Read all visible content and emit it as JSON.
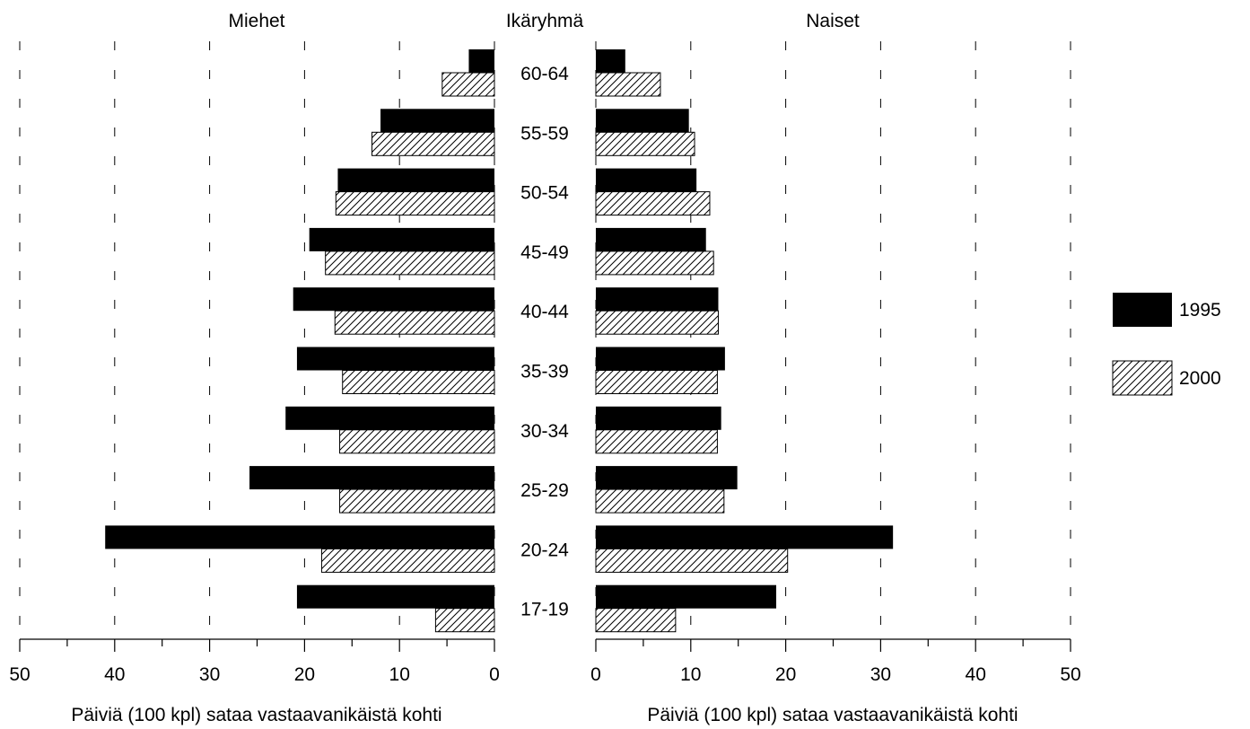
{
  "chart_data": {
    "type": "bar",
    "orientation": "horizontal",
    "layout": "population-pyramid",
    "center_label": "Ikäryhmä",
    "categories": [
      "60-64",
      "55-59",
      "50-54",
      "45-49",
      "40-44",
      "35-39",
      "30-34",
      "25-29",
      "20-24",
      "17-19"
    ],
    "panels": [
      {
        "title": "Miehet",
        "xlabel": "Päiviä (100 kpl) sataa vastaavanikäistä kohti",
        "direction": "reversed",
        "xlim": [
          0,
          50
        ],
        "ticks": [
          50,
          40,
          30,
          20,
          10,
          0
        ],
        "series": [
          {
            "name": "1995",
            "values": [
              2.7,
              12.0,
              16.5,
              19.5,
              21.2,
              20.8,
              22.0,
              25.8,
              41.0,
              20.8
            ]
          },
          {
            "name": "2000",
            "values": [
              5.5,
              12.9,
              16.7,
              17.8,
              16.8,
              16.0,
              16.3,
              16.3,
              18.2,
              6.2
            ]
          }
        ]
      },
      {
        "title": "Naiset",
        "xlabel": "Päiviä (100 kpl) sataa vastaavanikäistä kohti",
        "direction": "normal",
        "xlim": [
          0,
          50
        ],
        "ticks": [
          0,
          10,
          20,
          30,
          40,
          50
        ],
        "series": [
          {
            "name": "1995",
            "values": [
              3.1,
              9.8,
              10.6,
              11.6,
              12.9,
              13.6,
              13.2,
              14.9,
              31.3,
              19.0
            ]
          },
          {
            "name": "2000",
            "values": [
              6.8,
              10.4,
              12.0,
              12.4,
              12.9,
              12.8,
              12.8,
              13.5,
              20.2,
              8.4
            ]
          }
        ]
      }
    ],
    "legend": {
      "placement": "right",
      "items": [
        {
          "label": "1995",
          "fill": "solid"
        },
        {
          "label": "2000",
          "fill": "hatched"
        }
      ]
    },
    "grid": "dashed-vertical",
    "colors": {
      "bar_1995": "#000000",
      "bar_2000_hatch": "#000000",
      "background": "#ffffff"
    }
  }
}
